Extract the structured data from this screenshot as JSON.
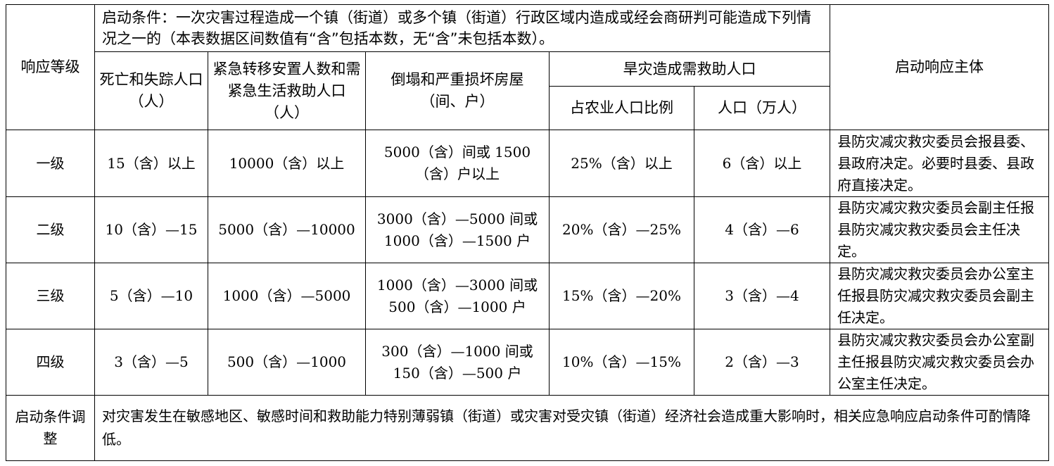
{
  "header": {
    "response_level": "响应等级",
    "start_condition": "启动条件：一次灾害过程造成一个镇（街道）或多个镇（街道）行政区域内造成或经会商研判可能造成下列情况之一的（本表数据区间数值有“含”包括本数，无“含”未包括本数）。",
    "col_deaths": "死亡和失踪人口（人）",
    "col_relocated": "紧急转移安置人数和需紧急生活救助人口（人）",
    "col_houses": "倒塌和严重损坏房屋（间、户）",
    "col_drought": "旱灾造成需救助人口",
    "col_drought_ratio": "占农业人口比例",
    "col_drought_pop": "人口（万人）",
    "col_subject": "启动响应主体"
  },
  "rows": [
    {
      "level": "一级",
      "deaths": "15（含）以上",
      "relocated": "10000（含）以上",
      "houses": "5000（含）间或 1500（含）户以上",
      "drought_ratio": "25%（含）以上",
      "drought_pop": "6（含）以上",
      "subject": "县防灾减灾救灾委员会报县委、县政府决定。必要时县委、县政府直接决定。"
    },
    {
      "level": "二级",
      "deaths": "10（含）—15",
      "relocated": "5000（含）—10000",
      "houses": "3000（含）—5000 间或 1000（含）—1500 户",
      "drought_ratio": "20%（含）—25%",
      "drought_pop": "4（含）—6",
      "subject": "县防灾减灾救灾委员会副主任报县防灾减灾救灾委员会主任决定。"
    },
    {
      "level": "三级",
      "deaths": "5（含）—10",
      "relocated": "1000（含）—5000",
      "houses": "1000（含）—3000 间或 500（含）—1000 户",
      "drought_ratio": "15%（含）—20%",
      "drought_pop": "3（含）—4",
      "subject": "县防灾减灾救灾委员会办公室主任报县防灾减灾救灾委员会副主任决定。"
    },
    {
      "level": "四级",
      "deaths": "3（含）—5",
      "relocated": "500（含）—1000",
      "houses": "300（含）—1000 间或 150（含）—500 户",
      "drought_ratio": "10%（含）—15%",
      "drought_pop": "2（含）—3",
      "subject": "县防灾减灾救灾委员会办公室副主任报县防灾减灾救灾委员会办公室主任决定。"
    }
  ],
  "adjustment": {
    "label": "启动条件调整",
    "text": "对灾害发生在敏感地区、敏感时间和救助能力特别薄弱镇（街道）或灾害对受灾镇（街道）经济社会造成重大影响时，相关应急响应启动条件可酌情降低。"
  }
}
